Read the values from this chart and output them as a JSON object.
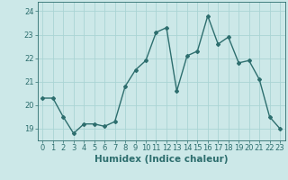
{
  "x": [
    0,
    1,
    2,
    3,
    4,
    5,
    6,
    7,
    8,
    9,
    10,
    11,
    12,
    13,
    14,
    15,
    16,
    17,
    18,
    19,
    20,
    21,
    22,
    23
  ],
  "y": [
    20.3,
    20.3,
    19.5,
    18.8,
    19.2,
    19.2,
    19.1,
    19.3,
    20.8,
    21.5,
    21.9,
    23.1,
    23.3,
    20.6,
    22.1,
    22.3,
    23.8,
    22.6,
    22.9,
    21.8,
    21.9,
    21.1,
    19.5,
    19.0
  ],
  "line_color": "#2d6e6e",
  "marker": "D",
  "marker_size": 2.0,
  "line_width": 1.0,
  "bg_color": "#cce8e8",
  "grid_color": "#aad4d4",
  "xlabel": "Humidex (Indice chaleur)",
  "xlabel_fontsize": 7.5,
  "xlabel_color": "#2d6e6e",
  "tick_color": "#2d6e6e",
  "tick_fontsize": 6.0,
  "ylim": [
    18.5,
    24.4
  ],
  "xlim": [
    -0.5,
    23.5
  ],
  "yticks": [
    19,
    20,
    21,
    22,
    23,
    24
  ],
  "xticks": [
    0,
    1,
    2,
    3,
    4,
    5,
    6,
    7,
    8,
    9,
    10,
    11,
    12,
    13,
    14,
    15,
    16,
    17,
    18,
    19,
    20,
    21,
    22,
    23
  ]
}
